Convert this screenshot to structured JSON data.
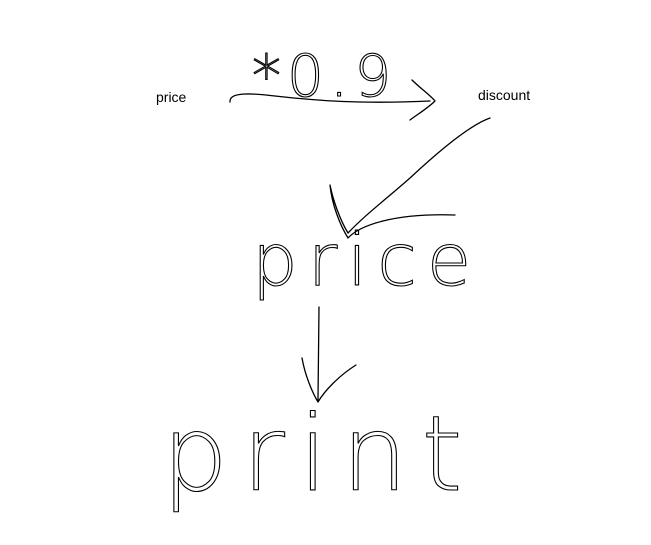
{
  "nodes": [
    {
      "label": "price"
    },
    {
      "label": "discount"
    },
    {
      "label": "price"
    },
    {
      "label": "print"
    }
  ],
  "edges": [
    {
      "label": "*0.9"
    }
  ]
}
